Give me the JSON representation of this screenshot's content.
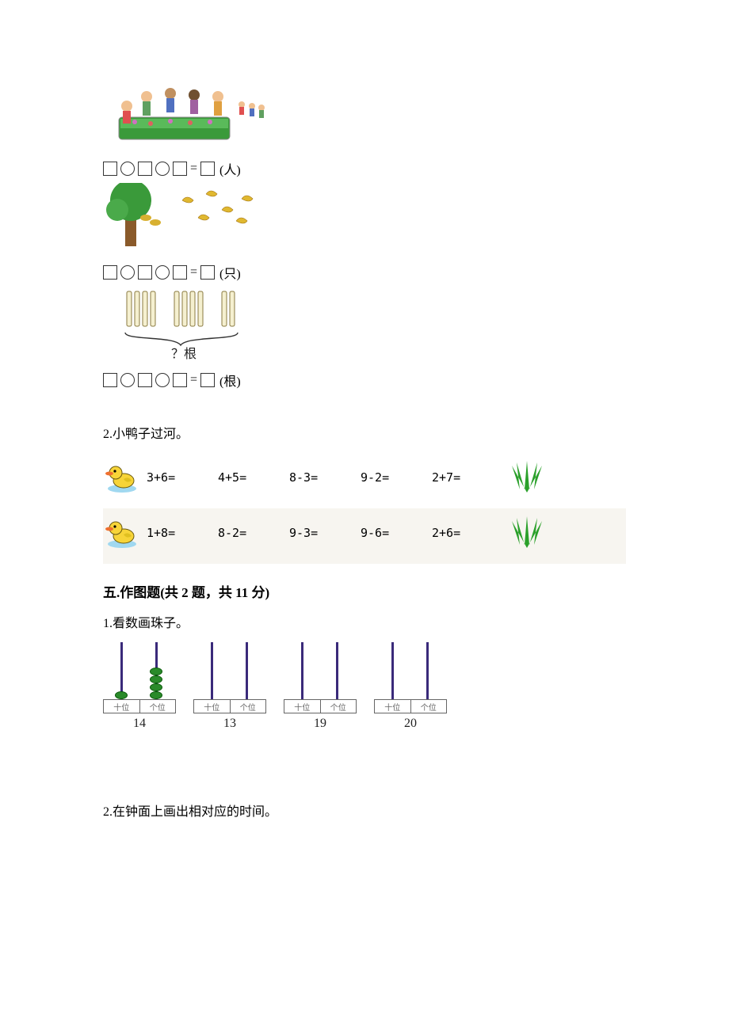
{
  "figures": {
    "children": {
      "unit": "(人)"
    },
    "birds": {
      "unit": "(只)"
    },
    "sticks": {
      "question": "？根",
      "unit": "(根)"
    }
  },
  "q2": {
    "title": "2.小鸭子过河。",
    "rows": [
      {
        "exprs": [
          "3+6=",
          "4+5=",
          "8-3=",
          "9-2=",
          "2+7="
        ]
      },
      {
        "exprs": [
          "1+8=",
          "8-2=",
          "9-3=",
          "9-6=",
          "2+6="
        ]
      }
    ]
  },
  "section5": {
    "title": "五.作图题(共 2 题，共 11 分)",
    "q1": {
      "title": "1.看数画珠子。"
    },
    "abacus": {
      "tens_label": "十位",
      "ones_label": "个位",
      "items": [
        {
          "num": "14",
          "tens_beads": 1,
          "ones_beads": 4
        },
        {
          "num": "13",
          "tens_beads": 0,
          "ones_beads": 0
        },
        {
          "num": "19",
          "tens_beads": 0,
          "ones_beads": 0
        },
        {
          "num": "20",
          "tens_beads": 0,
          "ones_beads": 0
        }
      ]
    },
    "q2": {
      "title": "2.在钟面上画出相对应的时间。"
    }
  },
  "colors": {
    "page_bg": "#ffffff",
    "text": "#000000",
    "rod": "#3a2a7a",
    "bead": "#2a8a2a",
    "grass": "#2aa02a",
    "duck_body": "#f7d438",
    "duck_beak": "#f07030",
    "shade": "#f7f5f0"
  }
}
